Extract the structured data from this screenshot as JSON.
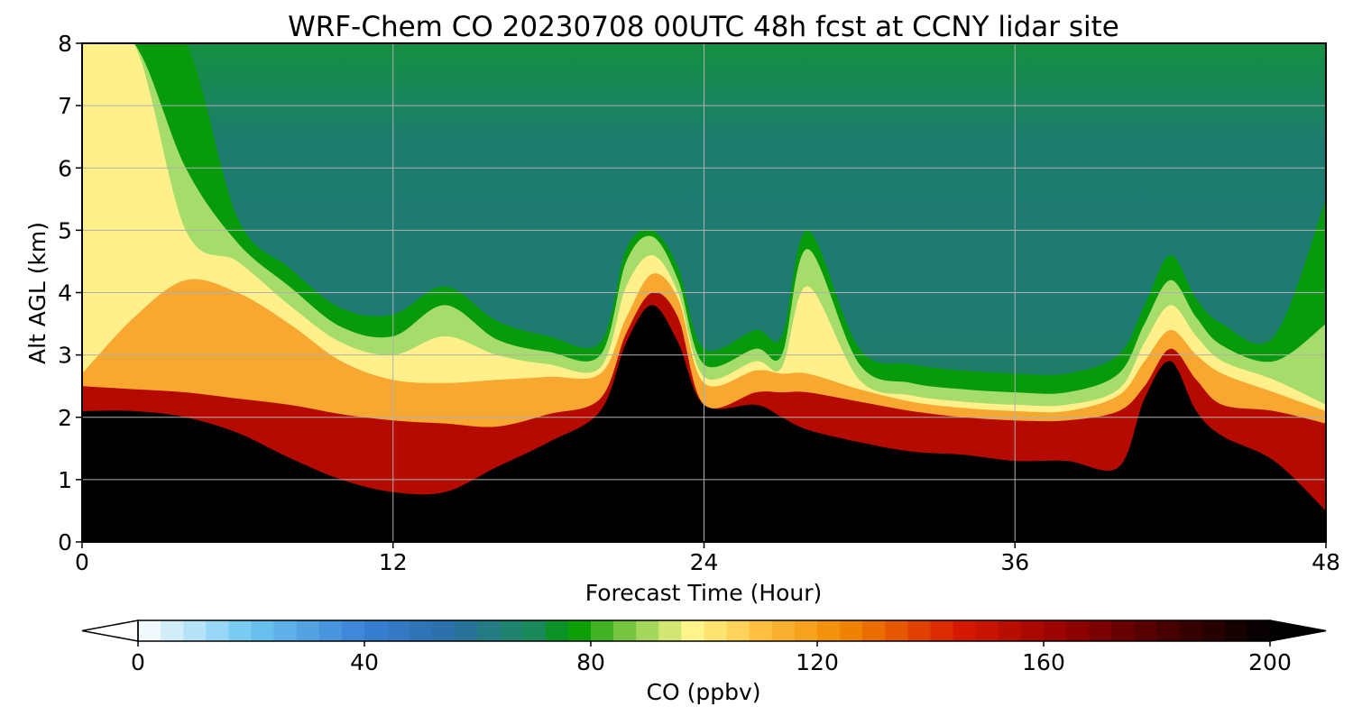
{
  "chart_data": {
    "type": "heatmap",
    "title": "WRF-Chem CO  20230708 00UTC 48h fcst at CCNY lidar site",
    "xlabel": "Forecast Time (Hour)",
    "ylabel": "Alt AGL (km)",
    "xlim": [
      0,
      48
    ],
    "ylim": [
      0,
      8
    ],
    "x_ticks": [
      0,
      12,
      24,
      36,
      48
    ],
    "y_ticks": [
      0,
      1,
      2,
      3,
      4,
      5,
      6,
      7,
      8
    ],
    "grid": true,
    "colorbar": {
      "label": "CO  (ppbv)",
      "orientation": "horizontal",
      "position": "bottom",
      "range": [
        0,
        200
      ],
      "ticks": [
        0,
        40,
        80,
        120,
        160,
        200
      ],
      "extend": "both",
      "colormap_stops": [
        {
          "value": 0,
          "color": "#ffffff"
        },
        {
          "value": 20,
          "color": "#6cc6f0"
        },
        {
          "value": 40,
          "color": "#3a80d6"
        },
        {
          "value": 55,
          "color": "#2a6ea8"
        },
        {
          "value": 70,
          "color": "#1a8a5a"
        },
        {
          "value": 77,
          "color": "#009a00"
        },
        {
          "value": 88,
          "color": "#8fcf50"
        },
        {
          "value": 98,
          "color": "#fff58a"
        },
        {
          "value": 110,
          "color": "#ffc040"
        },
        {
          "value": 125,
          "color": "#f08800"
        },
        {
          "value": 145,
          "color": "#d81a00"
        },
        {
          "value": 165,
          "color": "#900000"
        },
        {
          "value": 185,
          "color": "#3a0000"
        },
        {
          "value": 200,
          "color": "#000000"
        }
      ]
    },
    "hours": [
      0,
      2,
      4,
      6,
      8,
      10,
      12,
      14,
      16,
      18,
      20,
      21,
      22,
      23,
      24,
      26,
      27,
      28,
      30,
      32,
      34,
      36,
      38,
      40,
      41,
      42,
      43,
      44,
      46,
      48
    ],
    "layers": [
      {
        "name": "black_top_km",
        "values": [
          2.1,
          2.1,
          2.0,
          1.75,
          1.35,
          1.0,
          0.8,
          0.8,
          1.2,
          1.6,
          2.1,
          3.2,
          3.8,
          3.2,
          2.2,
          2.2,
          2.0,
          1.8,
          1.6,
          1.45,
          1.4,
          1.3,
          1.3,
          1.2,
          2.3,
          2.9,
          2.1,
          1.7,
          1.3,
          0.5
        ]
      },
      {
        "name": "red_top_km",
        "values": [
          2.5,
          2.45,
          2.4,
          2.3,
          2.2,
          2.05,
          1.95,
          1.9,
          1.85,
          2.05,
          2.3,
          3.35,
          4.0,
          3.6,
          2.2,
          2.4,
          2.4,
          2.4,
          2.25,
          2.1,
          2.0,
          1.95,
          1.95,
          2.1,
          2.5,
          3.1,
          2.6,
          2.2,
          2.1,
          1.9
        ]
      },
      {
        "name": "orange_top_km",
        "values": [
          2.7,
          3.6,
          4.2,
          4.0,
          3.5,
          2.9,
          2.6,
          2.55,
          2.6,
          2.65,
          2.7,
          3.6,
          4.3,
          3.9,
          2.55,
          2.75,
          2.7,
          2.7,
          2.45,
          2.25,
          2.15,
          2.1,
          2.1,
          2.35,
          2.9,
          3.4,
          3.0,
          2.7,
          2.4,
          2.1
        ]
      },
      {
        "name": "yellow_top_km",
        "values": [
          8.0,
          8.0,
          5.0,
          4.5,
          3.8,
          3.2,
          3.0,
          3.3,
          3.0,
          2.85,
          2.8,
          4.1,
          4.6,
          4.0,
          2.65,
          2.9,
          2.8,
          4.1,
          2.6,
          2.35,
          2.25,
          2.2,
          2.2,
          2.45,
          3.2,
          3.8,
          3.3,
          2.9,
          2.6,
          2.2
        ]
      },
      {
        "name": "lightgreen_top_km",
        "values": [
          8.0,
          8.0,
          6.0,
          4.8,
          4.1,
          3.45,
          3.3,
          3.8,
          3.25,
          3.05,
          3.0,
          4.5,
          4.9,
          4.2,
          2.85,
          3.1,
          3.0,
          4.7,
          2.85,
          2.55,
          2.45,
          2.4,
          2.4,
          2.7,
          3.5,
          4.2,
          3.6,
          3.15,
          2.9,
          3.5
        ]
      },
      {
        "name": "green_top_km",
        "values": [
          8.0,
          8.0,
          8.0,
          5.2,
          4.4,
          3.75,
          3.65,
          4.1,
          3.55,
          3.3,
          3.2,
          4.7,
          5.0,
          4.4,
          3.1,
          3.4,
          3.3,
          5.0,
          3.1,
          2.85,
          2.75,
          2.7,
          2.7,
          3.0,
          3.8,
          4.6,
          3.9,
          3.5,
          3.3,
          5.5
        ]
      }
    ]
  }
}
